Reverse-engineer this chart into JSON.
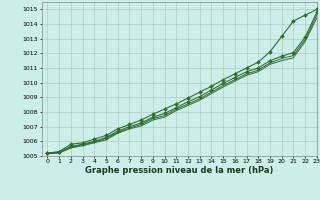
{
  "xlabel": "Graphe pression niveau de la mer (hPa)",
  "bg_color": "#cceee8",
  "grid_color": "#b0ccbc",
  "line_color": "#2d6e2d",
  "xlim": [
    -0.5,
    23
  ],
  "ylim": [
    1005.0,
    1015.5
  ],
  "yticks": [
    1005,
    1006,
    1007,
    1008,
    1009,
    1010,
    1011,
    1012,
    1013,
    1014,
    1015
  ],
  "xticks": [
    0,
    1,
    2,
    3,
    4,
    5,
    6,
    7,
    8,
    9,
    10,
    11,
    12,
    13,
    14,
    15,
    16,
    17,
    18,
    19,
    20,
    21,
    22,
    23
  ],
  "lines": [
    {
      "x": [
        0,
        1,
        2,
        3,
        4,
        5,
        6,
        7,
        8,
        9,
        10,
        11,
        12,
        13,
        14,
        15,
        16,
        17,
        18,
        19,
        20,
        21,
        22,
        23
      ],
      "y": [
        1005.2,
        1005.3,
        1005.8,
        1005.9,
        1006.15,
        1006.4,
        1006.85,
        1007.15,
        1007.45,
        1007.85,
        1008.2,
        1008.55,
        1008.95,
        1009.35,
        1009.75,
        1010.2,
        1010.6,
        1011.0,
        1011.4,
        1012.1,
        1013.15,
        1014.2,
        1014.6,
        1015.0
      ],
      "marker": "D",
      "markersize": 2.0,
      "linewidth": 0.8
    },
    {
      "x": [
        0,
        1,
        2,
        3,
        4,
        5,
        6,
        7,
        8,
        9,
        10,
        11,
        12,
        13,
        14,
        15,
        16,
        17,
        18,
        19,
        20,
        21,
        22,
        23
      ],
      "y": [
        1005.2,
        1005.25,
        1005.65,
        1005.8,
        1006.0,
        1006.25,
        1006.7,
        1007.0,
        1007.25,
        1007.65,
        1007.9,
        1008.3,
        1008.7,
        1009.05,
        1009.5,
        1009.95,
        1010.35,
        1010.75,
        1011.0,
        1011.5,
        1011.8,
        1012.05,
        1013.1,
        1014.8
      ],
      "marker": "D",
      "markersize": 2.0,
      "linewidth": 0.8
    },
    {
      "x": [
        0,
        1,
        2,
        3,
        4,
        5,
        6,
        7,
        8,
        9,
        10,
        11,
        12,
        13,
        14,
        15,
        16,
        17,
        18,
        19,
        20,
        21,
        22,
        23
      ],
      "y": [
        1005.2,
        1005.25,
        1005.6,
        1005.75,
        1005.95,
        1006.2,
        1006.6,
        1006.9,
        1007.15,
        1007.55,
        1007.75,
        1008.2,
        1008.55,
        1008.9,
        1009.35,
        1009.8,
        1010.2,
        1010.6,
        1010.85,
        1011.35,
        1011.65,
        1011.85,
        1012.95,
        1014.6
      ],
      "marker": null,
      "markersize": 0,
      "linewidth": 0.7
    },
    {
      "x": [
        0,
        1,
        2,
        3,
        4,
        5,
        6,
        7,
        8,
        9,
        10,
        11,
        12,
        13,
        14,
        15,
        16,
        17,
        18,
        19,
        20,
        21,
        22,
        23
      ],
      "y": [
        1005.15,
        1005.2,
        1005.55,
        1005.7,
        1005.9,
        1006.1,
        1006.55,
        1006.85,
        1007.05,
        1007.45,
        1007.65,
        1008.1,
        1008.45,
        1008.8,
        1009.25,
        1009.7,
        1010.1,
        1010.5,
        1010.75,
        1011.25,
        1011.5,
        1011.7,
        1012.8,
        1014.4
      ],
      "marker": null,
      "markersize": 0,
      "linewidth": 0.7
    }
  ]
}
